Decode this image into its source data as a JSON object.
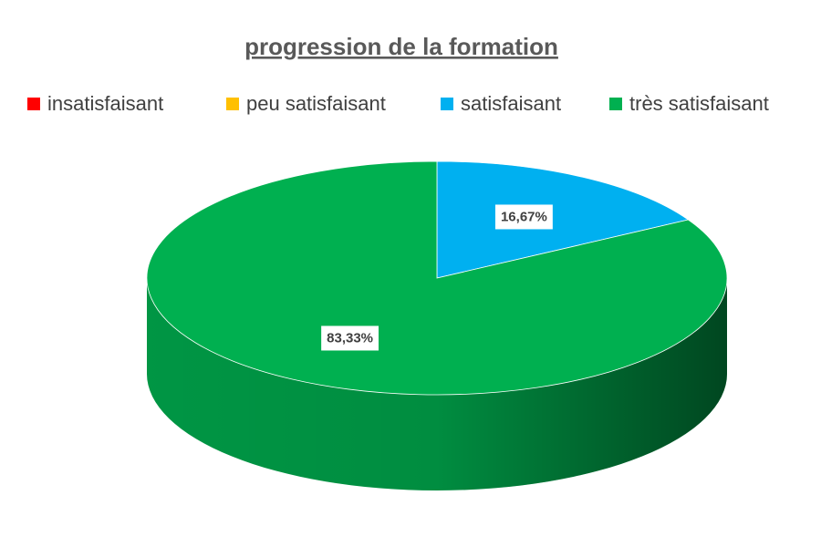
{
  "chart_data": {
    "type": "pie",
    "title": "progression de la formation",
    "categories": [
      "insatisfaisant",
      "peu satisfaisant",
      "satisfaisant",
      "très satisfaisant"
    ],
    "values": [
      0,
      0,
      16.67,
      83.33
    ],
    "value_labels": [
      null,
      null,
      "16,67%",
      "83,33%"
    ],
    "colors": [
      "#ff0000",
      "#ffc000",
      "#00b0f0",
      "#00b050"
    ],
    "legend": "top"
  }
}
